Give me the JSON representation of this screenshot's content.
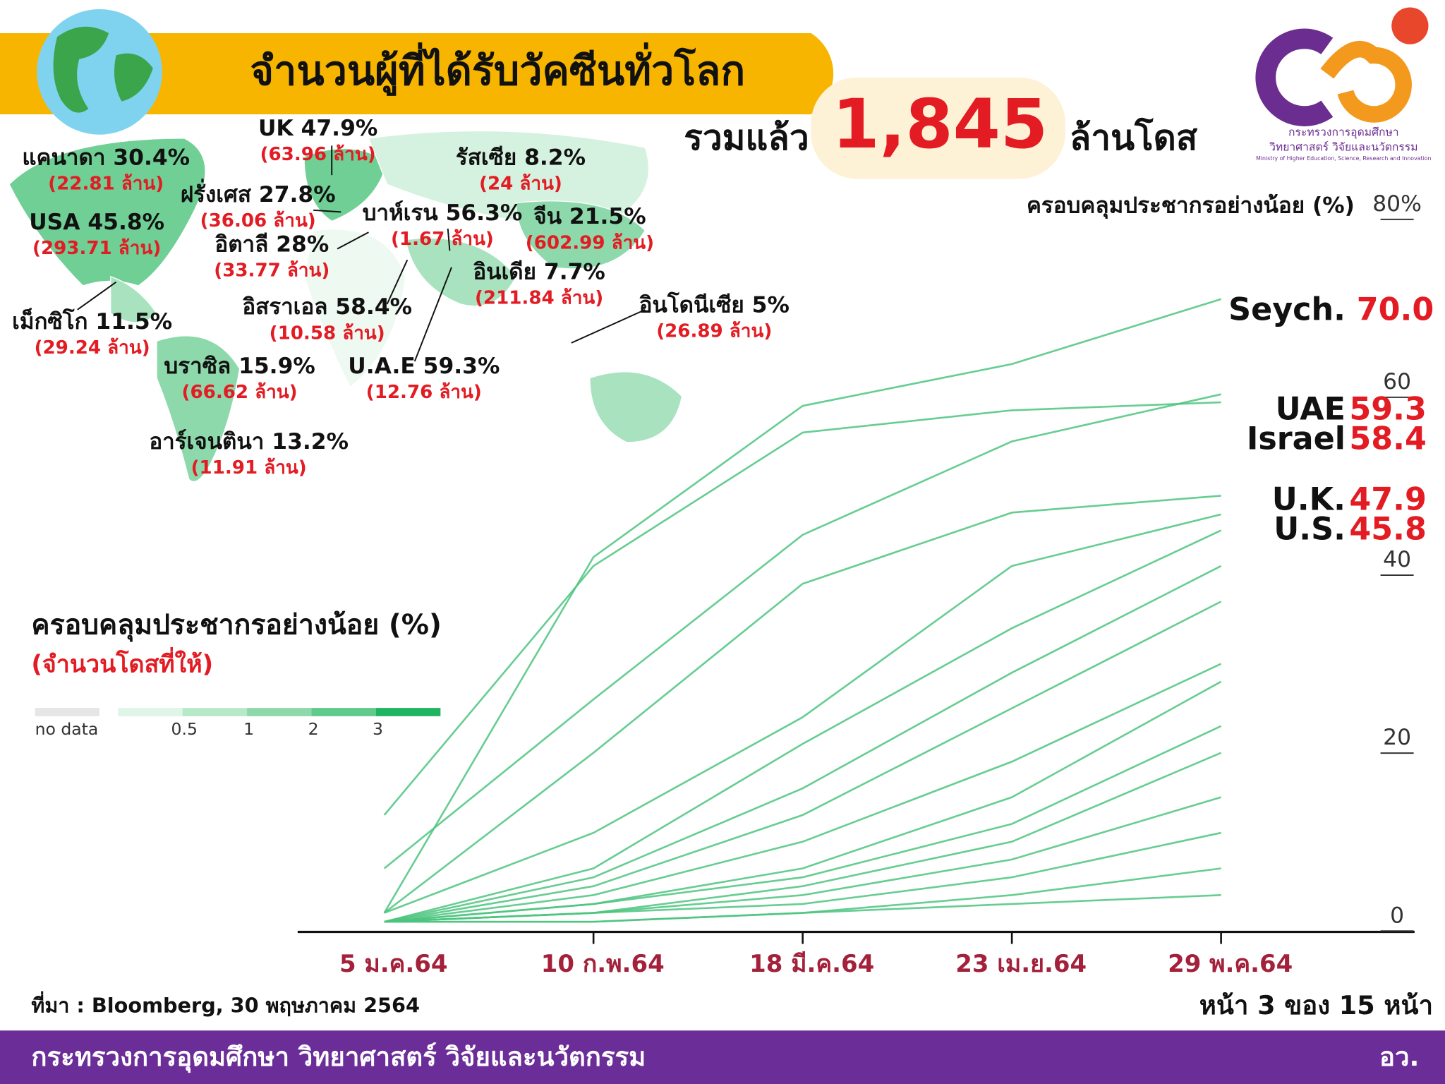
{
  "header": {
    "title": "จำนวนผู้ที่ได้รับวัคซีนทั่วโลก",
    "total_prefix": "รวมแล้ว",
    "total": "1,845",
    "total_suffix": "ล้านโดส",
    "ministry_line1": "กระทรวงการอุดมศึกษา",
    "ministry_line2": "วิทยาศาสตร์ วิจัยและนวัตกรรม",
    "ministry_en": "Ministry of Higher Education, Science, Research and Innovation"
  },
  "map": {
    "labels": [
      {
        "country": "แคนาดา 30.4%",
        "doses": "(22.81 ล้าน)"
      },
      {
        "country": "UK 47.9%",
        "doses": "(63.96 ล้าน)"
      },
      {
        "country": "รัสเซีย 8.2%",
        "doses": "(24 ล้าน)"
      },
      {
        "country": "ฝรั่งเศส 27.8%",
        "doses": "(36.06 ล้าน)"
      },
      {
        "country": "USA 45.8%",
        "doses": "(293.71 ล้าน)"
      },
      {
        "country": "บาห์เรน 56.3%",
        "doses": "(1.67 ล้าน)"
      },
      {
        "country": "จีน 21.5%",
        "doses": "(602.99 ล้าน)"
      },
      {
        "country": "อิตาลี 28%",
        "doses": "(33.77 ล้าน)"
      },
      {
        "country": "อินเดีย 7.7%",
        "doses": "(211.84 ล้าน)"
      },
      {
        "country": "อิสราเอล 58.4%",
        "doses": "(10.58 ล้าน)"
      },
      {
        "country": "อินโดนีเซีย 5%",
        "doses": "(26.89 ล้าน)"
      },
      {
        "country": "เม็กซิโก 11.5%",
        "doses": "(29.24 ล้าน)"
      },
      {
        "country": "บราซิล 15.9%",
        "doses": "(66.62 ล้าน)"
      },
      {
        "country": "U.A.E 59.3%",
        "doses": "(12.76 ล้าน)"
      },
      {
        "country": "อาร์เจนตินา 13.2%",
        "doses": "(11.91 ล้าน)"
      }
    ]
  },
  "legend": {
    "title": "ครอบคลุมประชากรอย่างน้อย (%)",
    "subtitle": "(จำนวนโดสที่ให้)",
    "no_data": "no data",
    "ticks": [
      0.5,
      1,
      2,
      3
    ]
  },
  "chart_data": {
    "type": "line",
    "title": "ครอบคลุมประชากรอย่างน้อย (%)",
    "x": [
      "5 ม.ค.64",
      "10 ก.พ.64",
      "18 มี.ค.64",
      "23 เม.ย.64",
      "29 พ.ค.64"
    ],
    "ylim": [
      0,
      80
    ],
    "yticks": [
      0,
      20,
      40,
      60,
      {
        "value": 80,
        "label": "80%"
      }
    ],
    "series": [
      {
        "name": "Seych.",
        "color": "#4cc47f",
        "values": [
          1,
          41,
          58,
          62.7,
          70.0
        ],
        "value_labels": [
          null,
          null,
          null,
          null,
          "70.0"
        ]
      },
      {
        "name": "UAE",
        "color": "#4cc47f",
        "values": [
          6,
          25,
          43.5,
          54,
          59.3
        ]
      },
      {
        "name": "Israel",
        "color": "#4cc47f",
        "values": [
          12,
          40,
          55,
          57.5,
          58.4
        ]
      },
      {
        "name": "U.K.",
        "color": "#4cc47f",
        "values": [
          1,
          19,
          38,
          46,
          47.9
        ]
      },
      {
        "name": "U.S.",
        "color": "#4cc47f",
        "values": [
          1,
          10,
          23,
          40,
          45.8
        ]
      },
      {
        "color": "#4cc47f",
        "values": [
          0,
          4,
          12,
          24,
          36
        ]
      },
      {
        "color": "#4cc47f",
        "values": [
          0,
          3,
          9,
          18,
          29
        ]
      },
      {
        "color": "#4cc47f",
        "values": [
          0,
          2,
          6,
          14,
          27
        ]
      },
      {
        "color": "#4cc47f",
        "values": [
          0,
          2,
          5,
          11,
          22
        ]
      },
      {
        "color": "#4cc47f",
        "values": [
          0,
          1,
          4,
          9,
          19
        ]
      },
      {
        "color": "#4cc47f",
        "values": [
          0,
          1,
          3,
          7,
          14
        ]
      },
      {
        "color": "#4cc47f",
        "values": [
          0,
          1,
          2,
          5,
          10
        ]
      },
      {
        "color": "#4cc47f",
        "values": [
          0,
          0,
          1,
          3,
          6
        ]
      },
      {
        "color": "#4cc47f",
        "values": [
          0,
          0,
          1,
          2,
          3
        ]
      },
      {
        "color": "#4cc47f",
        "values": [
          0,
          6,
          20,
          33,
          44
        ]
      },
      {
        "color": "#4cc47f",
        "values": [
          0,
          5,
          15,
          28,
          40
        ]
      }
    ]
  },
  "footer": {
    "source": "ที่มา : Bloomberg, 30 พฤษภาคม 2564",
    "page": "หน้า 3 ของ 15 หน้า",
    "ministry": "กระทรวงการอุดมศึกษา วิทยาศาสตร์ วิจัยและนวัตกรรม",
    "short": "อว."
  }
}
